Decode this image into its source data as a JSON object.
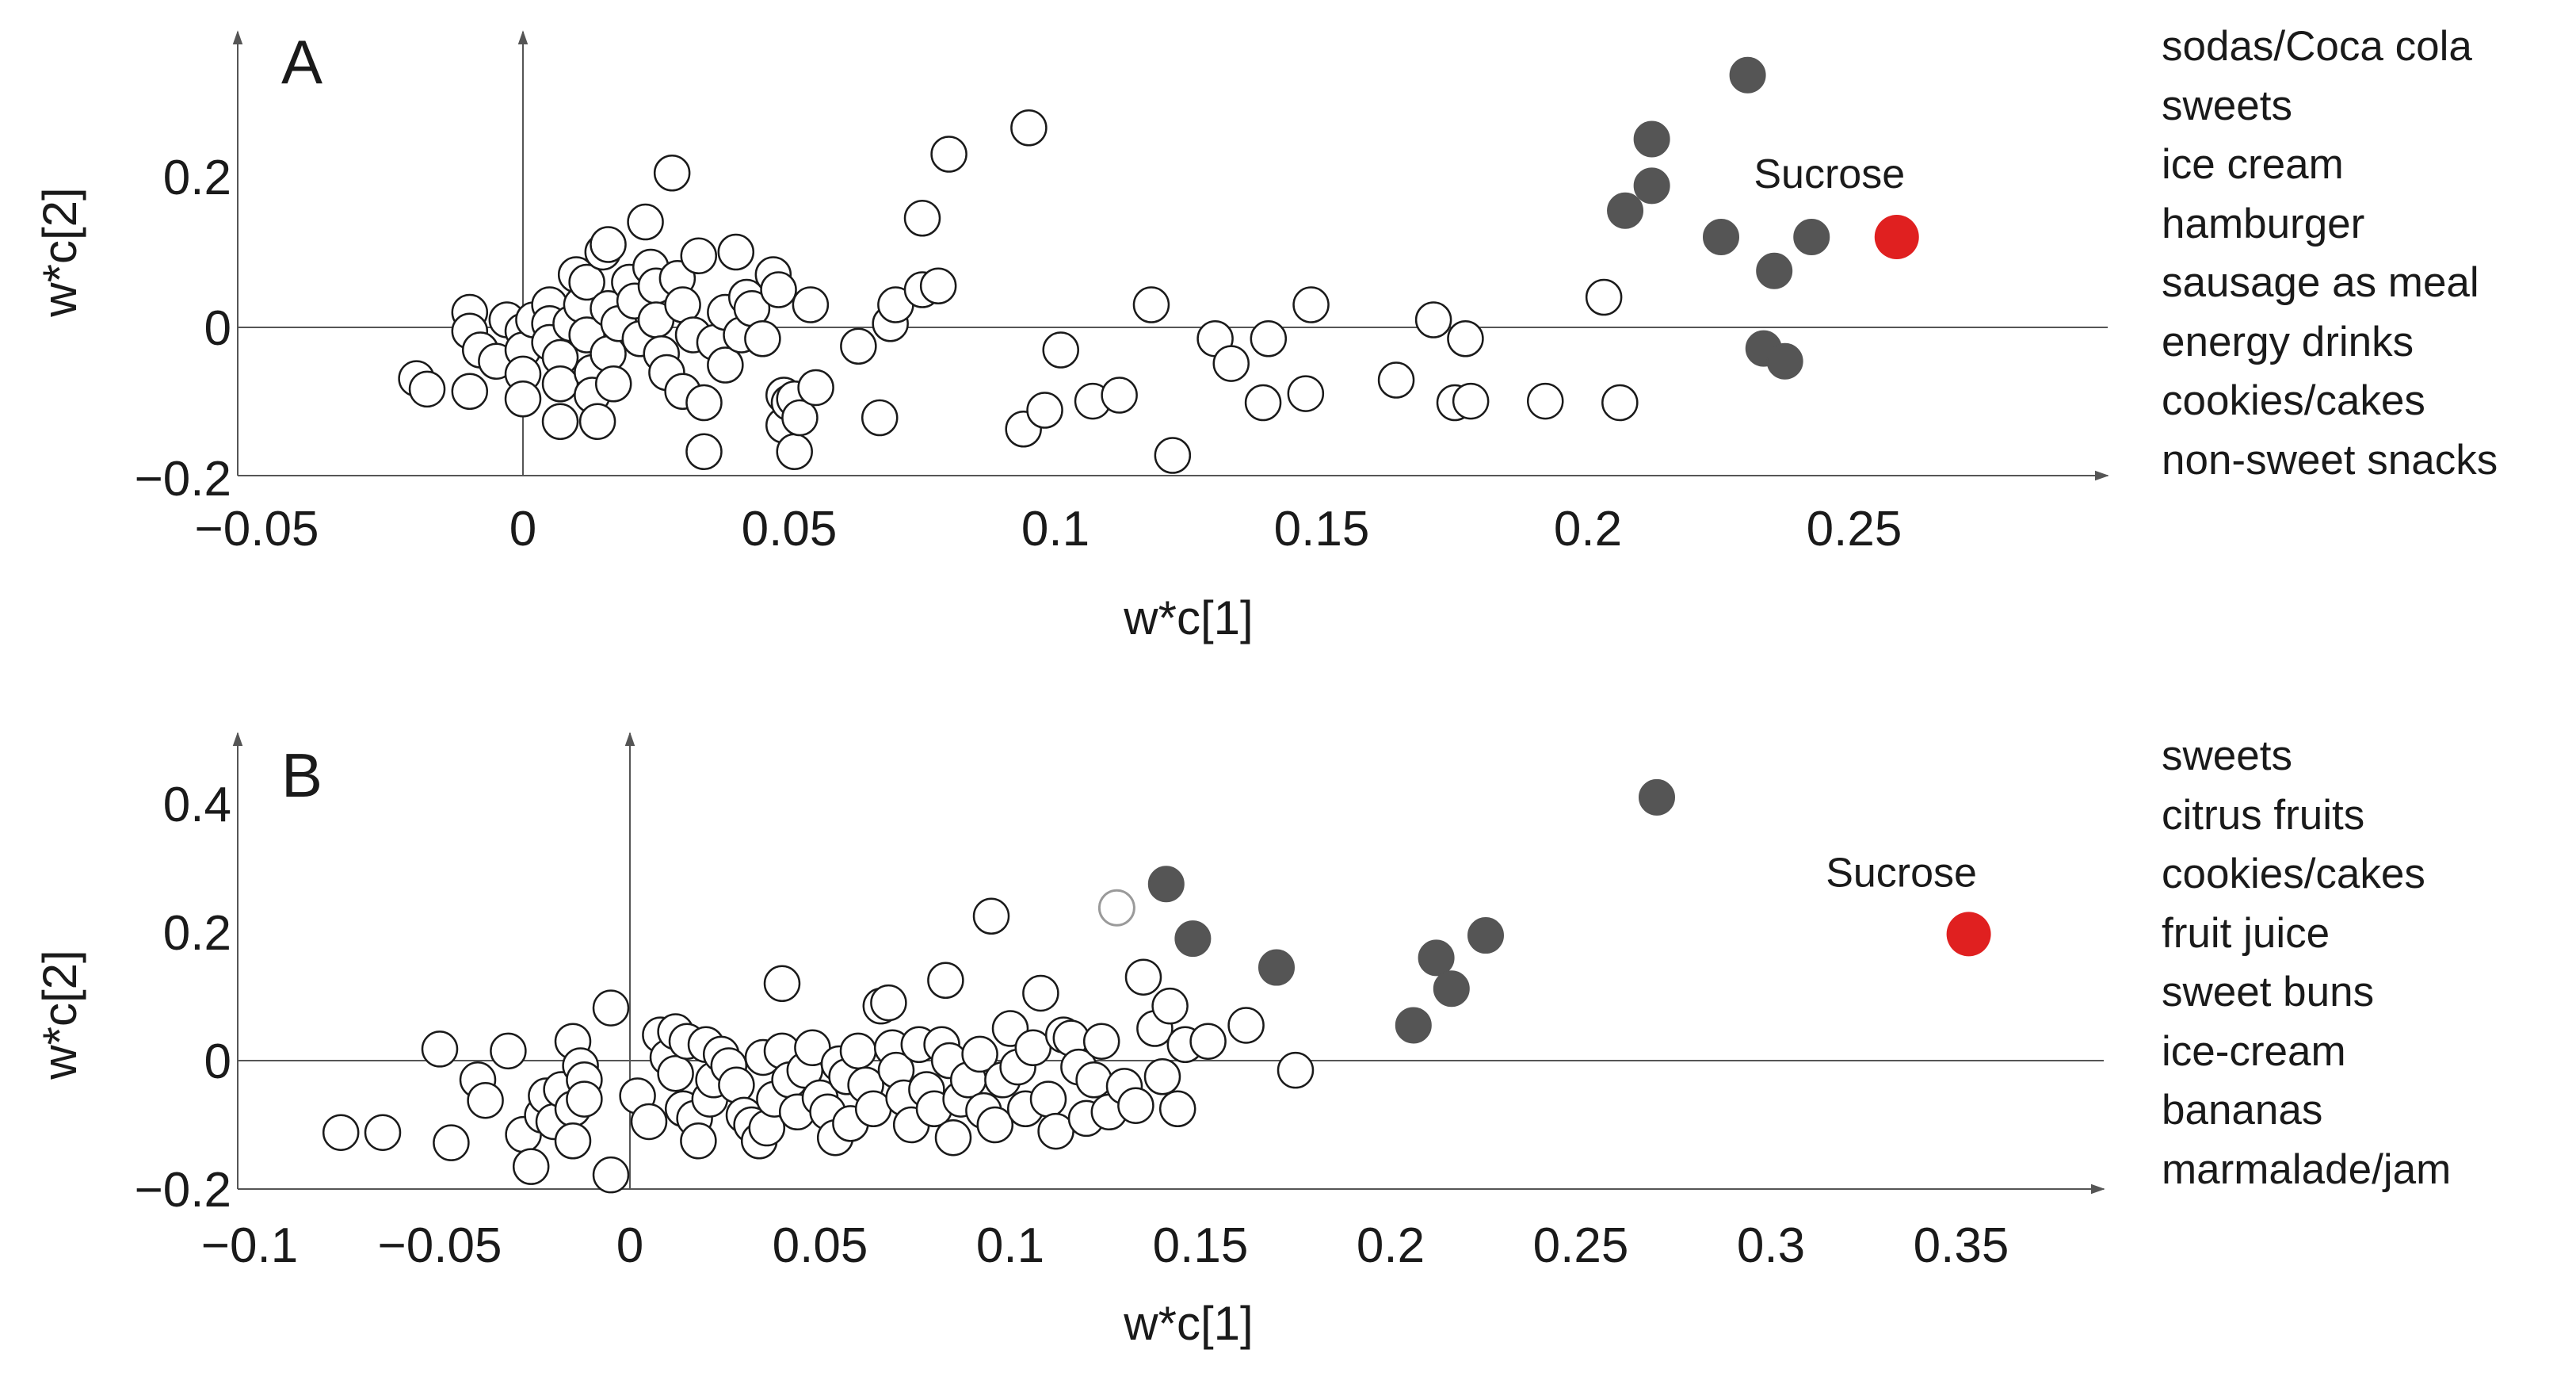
{
  "colors": {
    "open_fill": "#ffffff",
    "open_stroke": "#1a1a1a",
    "grey_stroke": "#9a9a9a",
    "filled": "#555555",
    "highlight": "#e02020",
    "axis": "#555555"
  },
  "lists": {
    "a": [
      "sodas/Coca cola",
      "sweets",
      "ice cream",
      "hamburger",
      "sausage as meal",
      "energy drinks",
      "cookies/cakes",
      "non-sweet snacks"
    ],
    "b": [
      "sweets",
      "citrus fruits",
      "cookies/cakes",
      "fruit juice",
      "sweet buns",
      "ice-cream",
      "bananas",
      "marmalade/jam"
    ]
  },
  "chart_data": [
    {
      "type": "scatter",
      "panel": "A",
      "xlabel": "w*c[1]",
      "ylabel": "w*c[2]",
      "xticks": [
        -0.05,
        0,
        0.05,
        0.1,
        0.15,
        0.2,
        0.25
      ],
      "xtick_labels": [
        "−0.05",
        "0",
        "0.05",
        "0.1",
        "0.15",
        "0.2",
        "0.25"
      ],
      "yticks": [
        -0.2,
        0,
        0.2
      ],
      "ytick_labels": [
        "−0.2",
        "0",
        "0.2"
      ],
      "xlim": [
        -0.05,
        0.29
      ],
      "ylim": [
        -0.2,
        0.38
      ],
      "highlight": {
        "label": "Sucrose",
        "x": 0.258,
        "y": 0.12
      },
      "filled_points": [
        [
          0.23,
          0.335
        ],
        [
          0.212,
          0.25
        ],
        [
          0.212,
          0.188
        ],
        [
          0.207,
          0.155
        ],
        [
          0.225,
          0.12
        ],
        [
          0.242,
          0.12
        ],
        [
          0.235,
          0.075
        ],
        [
          0.233,
          -0.028
        ],
        [
          0.237,
          -0.045
        ]
      ],
      "open_points": [
        [
          -0.02,
          -0.068
        ],
        [
          -0.018,
          -0.082
        ],
        [
          -0.01,
          0.02
        ],
        [
          -0.01,
          -0.005
        ],
        [
          -0.01,
          -0.085
        ],
        [
          -0.008,
          -0.03
        ],
        [
          -0.005,
          -0.045
        ],
        [
          -0.003,
          0.01
        ],
        [
          0,
          -0.005
        ],
        [
          0,
          -0.03
        ],
        [
          0,
          -0.062
        ],
        [
          0,
          -0.095
        ],
        [
          0.002,
          0.01
        ],
        [
          0.005,
          0.03
        ],
        [
          0.005,
          0.005
        ],
        [
          0.005,
          -0.02
        ],
        [
          0.007,
          -0.04
        ],
        [
          0.007,
          -0.075
        ],
        [
          0.007,
          -0.125
        ],
        [
          0.009,
          0.005
        ],
        [
          0.01,
          0.07
        ],
        [
          0.011,
          0.03
        ],
        [
          0.012,
          0.06
        ],
        [
          0.012,
          -0.01
        ],
        [
          0.013,
          -0.06
        ],
        [
          0.013,
          -0.09
        ],
        [
          0.014,
          -0.125
        ],
        [
          0.015,
          0.1
        ],
        [
          0.016,
          0.11
        ],
        [
          0.016,
          0.025
        ],
        [
          0.016,
          -0.035
        ],
        [
          0.017,
          -0.075
        ],
        [
          0.018,
          0.005
        ],
        [
          0.02,
          0.06
        ],
        [
          0.021,
          0.035
        ],
        [
          0.022,
          -0.015
        ],
        [
          0.023,
          0.14
        ],
        [
          0.024,
          0.08
        ],
        [
          0.025,
          0.055
        ],
        [
          0.025,
          0.01
        ],
        [
          0.026,
          -0.035
        ],
        [
          0.027,
          -0.06
        ],
        [
          0.028,
          0.205
        ],
        [
          0.029,
          0.065
        ],
        [
          0.03,
          0.03
        ],
        [
          0.03,
          -0.085
        ],
        [
          0.032,
          -0.01
        ],
        [
          0.033,
          0.095
        ],
        [
          0.034,
          -0.1
        ],
        [
          0.034,
          -0.165
        ],
        [
          0.036,
          -0.02
        ],
        [
          0.038,
          0.02
        ],
        [
          0.038,
          -0.05
        ],
        [
          0.04,
          0.1
        ],
        [
          0.041,
          -0.01
        ],
        [
          0.042,
          0.04
        ],
        [
          0.043,
          0.025
        ],
        [
          0.045,
          -0.015
        ],
        [
          0.047,
          0.07
        ],
        [
          0.048,
          0.05
        ],
        [
          0.049,
          -0.09
        ],
        [
          0.049,
          -0.13
        ],
        [
          0.05,
          -0.1
        ],
        [
          0.051,
          -0.095
        ],
        [
          0.051,
          -0.165
        ],
        [
          0.052,
          -0.12
        ],
        [
          0.054,
          0.03
        ],
        [
          0.055,
          -0.08
        ],
        [
          0.063,
          -0.025
        ],
        [
          0.067,
          -0.12
        ],
        [
          0.069,
          0.005
        ],
        [
          0.07,
          0.03
        ],
        [
          0.075,
          0.145
        ],
        [
          0.075,
          0.05
        ],
        [
          0.078,
          0.055
        ],
        [
          0.08,
          0.23
        ],
        [
          0.094,
          -0.135
        ],
        [
          0.095,
          0.265
        ],
        [
          0.098,
          -0.11
        ],
        [
          0.101,
          -0.03
        ],
        [
          0.107,
          -0.098
        ],
        [
          0.112,
          -0.09
        ],
        [
          0.118,
          0.03
        ],
        [
          0.122,
          -0.17
        ],
        [
          0.13,
          -0.015
        ],
        [
          0.133,
          -0.048
        ],
        [
          0.139,
          -0.1
        ],
        [
          0.14,
          -0.015
        ],
        [
          0.147,
          -0.088
        ],
        [
          0.148,
          0.03
        ],
        [
          0.164,
          -0.07
        ],
        [
          0.171,
          0.01
        ],
        [
          0.175,
          -0.1
        ],
        [
          0.177,
          -0.015
        ],
        [
          0.178,
          -0.098
        ],
        [
          0.192,
          -0.098
        ],
        [
          0.203,
          0.04
        ],
        [
          0.206,
          -0.1
        ]
      ]
    },
    {
      "type": "scatter",
      "panel": "B",
      "xlabel": "w*c[1]",
      "ylabel": "w*c[2]",
      "xticks": [
        -0.1,
        -0.05,
        0,
        0.05,
        0.1,
        0.15,
        0.2,
        0.25,
        0.3,
        0.35
      ],
      "xtick_labels": [
        "−0.1",
        "−0.05",
        "0",
        "0.05",
        "0.1",
        "0.15",
        "0.2",
        "0.25",
        "0.3",
        "0.35"
      ],
      "yticks": [
        -0.2,
        0,
        0.2,
        0.4
      ],
      "ytick_labels": [
        "−0.2",
        "0",
        "0.2",
        "0.4"
      ],
      "xlim": [
        -0.1,
        0.39
      ],
      "ylim": [
        -0.2,
        0.5
      ],
      "highlight": {
        "label": "Sucrose",
        "x": 0.352,
        "y": 0.197
      },
      "filled_points": [
        [
          0.27,
          0.41
        ],
        [
          0.141,
          0.275
        ],
        [
          0.148,
          0.19
        ],
        [
          0.17,
          0.145
        ],
        [
          0.212,
          0.16
        ],
        [
          0.225,
          0.195
        ],
        [
          0.216,
          0.112
        ],
        [
          0.206,
          0.055
        ]
      ],
      "grey_points": [
        [
          0.128,
          0.238
        ]
      ],
      "open_points": [
        [
          -0.076,
          -0.112
        ],
        [
          -0.065,
          -0.112
        ],
        [
          -0.05,
          0.018
        ],
        [
          -0.047,
          -0.128
        ],
        [
          -0.04,
          -0.03
        ],
        [
          -0.038,
          -0.062
        ],
        [
          -0.032,
          0.015
        ],
        [
          -0.028,
          -0.115
        ],
        [
          -0.026,
          -0.165
        ],
        [
          -0.023,
          -0.085
        ],
        [
          -0.022,
          -0.055
        ],
        [
          -0.02,
          -0.095
        ],
        [
          -0.018,
          -0.045
        ],
        [
          -0.015,
          0.03
        ],
        [
          -0.015,
          -0.075
        ],
        [
          -0.015,
          -0.125
        ],
        [
          -0.013,
          -0.008
        ],
        [
          -0.012,
          -0.03
        ],
        [
          -0.012,
          -0.06
        ],
        [
          -0.005,
          0.082
        ],
        [
          -0.005,
          -0.178
        ],
        [
          0.002,
          -0.055
        ],
        [
          0.005,
          -0.095
        ],
        [
          0.008,
          0.04
        ],
        [
          0.01,
          0.005
        ],
        [
          0.012,
          0.045
        ],
        [
          0.012,
          -0.02
        ],
        [
          0.014,
          -0.075
        ],
        [
          0.015,
          0.03
        ],
        [
          0.017,
          -0.09
        ],
        [
          0.018,
          -0.125
        ],
        [
          0.02,
          0.025
        ],
        [
          0.021,
          -0.06
        ],
        [
          0.022,
          -0.03
        ],
        [
          0.024,
          0.01
        ],
        [
          0.026,
          -0.008
        ],
        [
          0.028,
          -0.038
        ],
        [
          0.03,
          -0.085
        ],
        [
          0.032,
          -0.1
        ],
        [
          0.034,
          -0.125
        ],
        [
          0.035,
          0.005
        ],
        [
          0.036,
          -0.105
        ],
        [
          0.038,
          -0.06
        ],
        [
          0.04,
          0.12
        ],
        [
          0.04,
          0.015
        ],
        [
          0.042,
          -0.03
        ],
        [
          0.044,
          -0.08
        ],
        [
          0.046,
          -0.015
        ],
        [
          0.048,
          0.02
        ],
        [
          0.05,
          -0.058
        ],
        [
          0.052,
          -0.08
        ],
        [
          0.054,
          -0.12
        ],
        [
          0.055,
          -0.005
        ],
        [
          0.057,
          -0.025
        ],
        [
          0.058,
          -0.098
        ],
        [
          0.06,
          0.015
        ],
        [
          0.062,
          -0.038
        ],
        [
          0.064,
          -0.075
        ],
        [
          0.066,
          0.085
        ],
        [
          0.068,
          0.09
        ],
        [
          0.069,
          0.02
        ],
        [
          0.07,
          -0.015
        ],
        [
          0.072,
          -0.058
        ],
        [
          0.074,
          -0.1
        ],
        [
          0.076,
          0.025
        ],
        [
          0.078,
          -0.045
        ],
        [
          0.08,
          -0.075
        ],
        [
          0.082,
          0.025
        ],
        [
          0.083,
          0.125
        ],
        [
          0.084,
          0.0
        ],
        [
          0.085,
          -0.12
        ],
        [
          0.087,
          -0.06
        ],
        [
          0.089,
          -0.03
        ],
        [
          0.092,
          0.01
        ],
        [
          0.093,
          -0.078
        ],
        [
          0.095,
          0.225
        ],
        [
          0.096,
          -0.1
        ],
        [
          0.098,
          -0.03
        ],
        [
          0.1,
          0.05
        ],
        [
          0.102,
          -0.01
        ],
        [
          0.104,
          -0.075
        ],
        [
          0.106,
          0.02
        ],
        [
          0.108,
          0.105
        ],
        [
          0.11,
          -0.06
        ],
        [
          0.112,
          -0.11
        ],
        [
          0.114,
          0.04
        ],
        [
          0.116,
          0.035
        ],
        [
          0.118,
          -0.01
        ],
        [
          0.12,
          -0.09
        ],
        [
          0.122,
          -0.03
        ],
        [
          0.124,
          0.03
        ],
        [
          0.126,
          -0.08
        ],
        [
          0.13,
          -0.04
        ],
        [
          0.133,
          -0.07
        ],
        [
          0.135,
          0.13
        ],
        [
          0.138,
          0.05
        ],
        [
          0.14,
          -0.025
        ],
        [
          0.142,
          0.085
        ],
        [
          0.144,
          -0.075
        ],
        [
          0.146,
          0.025
        ],
        [
          0.152,
          0.03
        ],
        [
          0.162,
          0.055
        ],
        [
          0.175,
          -0.015
        ]
      ]
    }
  ]
}
